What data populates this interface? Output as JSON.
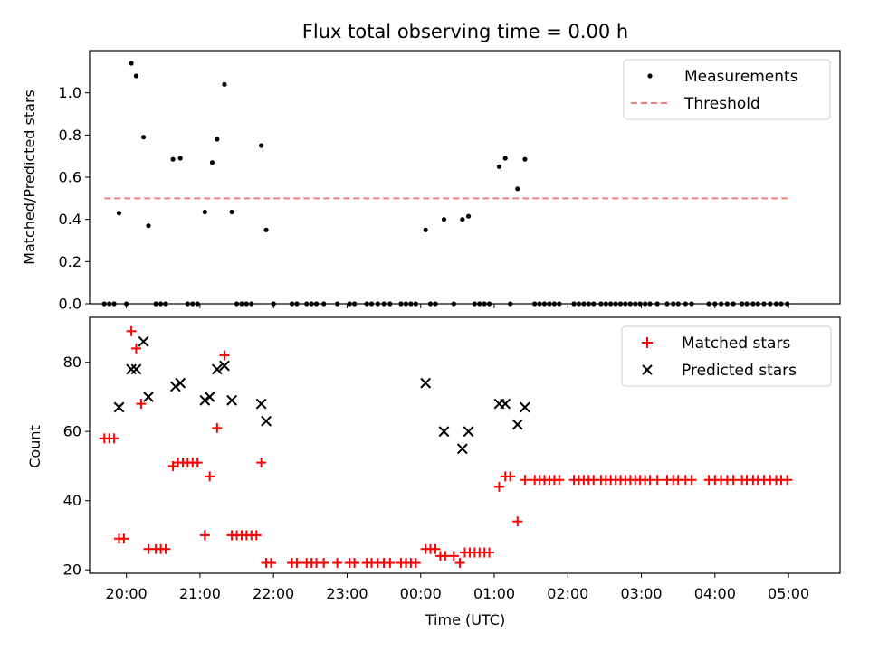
{
  "chart_data": [
    {
      "type": "scatter",
      "title": "Flux total observing time = 0.00 h",
      "xlabel": "",
      "ylabel": "Matched/Predicted stars",
      "ylim": [
        0.0,
        1.2
      ],
      "yticks": [
        "0.0",
        "0.2",
        "0.4",
        "0.6",
        "0.8",
        "1.0"
      ],
      "xlim": [
        -0.5,
        9.7
      ],
      "legend": {
        "placement": "top-right",
        "entries": [
          "Measurements",
          "Threshold"
        ]
      },
      "threshold": {
        "name": "Threshold",
        "x": [
          -0.3,
          9.0
        ],
        "y": 0.5,
        "color": "#f08080"
      },
      "series": [
        {
          "name": "Measurements",
          "marker": "dot",
          "color": "#000000",
          "points": [
            [
              -0.3,
              0
            ],
            [
              -0.233,
              0
            ],
            [
              -0.167,
              0
            ],
            [
              -0.1,
              0.43
            ],
            [
              0.0,
              0
            ],
            [
              0.067,
              1.14
            ],
            [
              0.133,
              1.08
            ],
            [
              0.233,
              0.79
            ],
            [
              0.3,
              0.37
            ],
            [
              0.4,
              0
            ],
            [
              0.467,
              0
            ],
            [
              0.533,
              0
            ],
            [
              0.633,
              0.685
            ],
            [
              0.733,
              0.69
            ],
            [
              0.833,
              0
            ],
            [
              0.9,
              0
            ],
            [
              0.967,
              0
            ],
            [
              1.067,
              0.435
            ],
            [
              1.167,
              0.67
            ],
            [
              1.233,
              0.78
            ],
            [
              1.333,
              1.04
            ],
            [
              1.433,
              0.435
            ],
            [
              1.5,
              0
            ],
            [
              1.567,
              0
            ],
            [
              1.633,
              0
            ],
            [
              1.7,
              0
            ],
            [
              1.833,
              0.75
            ],
            [
              1.9,
              0.35
            ],
            [
              2.0,
              0
            ],
            [
              2.25,
              0
            ],
            [
              2.317,
              0
            ],
            [
              2.45,
              0
            ],
            [
              2.517,
              0
            ],
            [
              2.583,
              0
            ],
            [
              2.683,
              0
            ],
            [
              2.867,
              0
            ],
            [
              3.033,
              0
            ],
            [
              3.1,
              0
            ],
            [
              3.267,
              0
            ],
            [
              3.333,
              0
            ],
            [
              3.417,
              0
            ],
            [
              3.5,
              0
            ],
            [
              3.583,
              0
            ],
            [
              3.733,
              0
            ],
            [
              3.8,
              0
            ],
            [
              3.867,
              0
            ],
            [
              3.933,
              0
            ],
            [
              4.067,
              0.35
            ],
            [
              4.133,
              0
            ],
            [
              4.2,
              0
            ],
            [
              4.317,
              0.4
            ],
            [
              4.45,
              0
            ],
            [
              4.567,
              0.4
            ],
            [
              4.65,
              0.415
            ],
            [
              4.733,
              0
            ],
            [
              4.8,
              0
            ],
            [
              4.867,
              0
            ],
            [
              4.933,
              0
            ],
            [
              5.067,
              0.65
            ],
            [
              5.15,
              0.69
            ],
            [
              5.217,
              0
            ],
            [
              5.317,
              0.545
            ],
            [
              5.417,
              0.685
            ],
            [
              5.55,
              0
            ],
            [
              5.617,
              0
            ],
            [
              5.683,
              0
            ],
            [
              5.75,
              0
            ],
            [
              5.817,
              0
            ],
            [
              5.883,
              0
            ],
            [
              6.083,
              0
            ],
            [
              6.15,
              0
            ],
            [
              6.217,
              0
            ],
            [
              6.283,
              0
            ],
            [
              6.35,
              0
            ],
            [
              6.45,
              0
            ],
            [
              6.517,
              0
            ],
            [
              6.583,
              0
            ],
            [
              6.65,
              0
            ],
            [
              6.717,
              0
            ],
            [
              6.783,
              0
            ],
            [
              6.85,
              0
            ],
            [
              6.917,
              0
            ],
            [
              6.983,
              0
            ],
            [
              7.05,
              0
            ],
            [
              7.117,
              0
            ],
            [
              7.217,
              0
            ],
            [
              7.35,
              0
            ],
            [
              7.433,
              0
            ],
            [
              7.5,
              0
            ],
            [
              7.6,
              0
            ],
            [
              7.683,
              0
            ],
            [
              7.917,
              0
            ],
            [
              8.0,
              0
            ],
            [
              8.083,
              0
            ],
            [
              8.167,
              0
            ],
            [
              8.25,
              0
            ],
            [
              8.367,
              0
            ],
            [
              8.433,
              0
            ],
            [
              8.517,
              0
            ],
            [
              8.583,
              0
            ],
            [
              8.667,
              0
            ],
            [
              8.75,
              0
            ],
            [
              8.833,
              0
            ],
            [
              8.9,
              0
            ],
            [
              8.983,
              0
            ]
          ]
        }
      ]
    },
    {
      "type": "scatter",
      "title": "",
      "xlabel": "Time (UTC)",
      "ylabel": "Count",
      "ylim": [
        19,
        93
      ],
      "yticks": [
        "20",
        "40",
        "60",
        "80"
      ],
      "xlim": [
        -0.5,
        9.7
      ],
      "xticks": [
        "20:00",
        "21:00",
        "22:00",
        "23:00",
        "00:00",
        "01:00",
        "02:00",
        "03:00",
        "04:00",
        "05:00"
      ],
      "legend": {
        "placement": "top-right",
        "entries": [
          "Matched stars",
          "Predicted stars"
        ]
      },
      "series": [
        {
          "name": "Matched stars",
          "marker": "plus",
          "color": "#ff0000",
          "points": [
            [
              -0.3,
              58
            ],
            [
              -0.233,
              58
            ],
            [
              -0.167,
              58
            ],
            [
              -0.1,
              29
            ],
            [
              -0.033,
              29
            ],
            [
              0.067,
              89
            ],
            [
              0.133,
              84
            ],
            [
              0.2,
              68
            ],
            [
              0.3,
              26
            ],
            [
              0.4,
              26
            ],
            [
              0.467,
              26
            ],
            [
              0.533,
              26
            ],
            [
              0.633,
              50
            ],
            [
              0.7,
              51
            ],
            [
              0.767,
              51
            ],
            [
              0.833,
              51
            ],
            [
              0.9,
              51
            ],
            [
              0.967,
              51
            ],
            [
              1.067,
              30
            ],
            [
              1.133,
              47
            ],
            [
              1.233,
              61
            ],
            [
              1.333,
              82
            ],
            [
              1.433,
              30
            ],
            [
              1.5,
              30
            ],
            [
              1.567,
              30
            ],
            [
              1.633,
              30
            ],
            [
              1.7,
              30
            ],
            [
              1.767,
              30
            ],
            [
              1.833,
              51
            ],
            [
              1.9,
              22
            ],
            [
              1.967,
              22
            ],
            [
              2.25,
              22
            ],
            [
              2.317,
              22
            ],
            [
              2.45,
              22
            ],
            [
              2.517,
              22
            ],
            [
              2.583,
              22
            ],
            [
              2.683,
              22
            ],
            [
              2.867,
              22
            ],
            [
              3.033,
              22
            ],
            [
              3.1,
              22
            ],
            [
              3.267,
              22
            ],
            [
              3.333,
              22
            ],
            [
              3.417,
              22
            ],
            [
              3.5,
              22
            ],
            [
              3.583,
              22
            ],
            [
              3.733,
              22
            ],
            [
              3.8,
              22
            ],
            [
              3.867,
              22
            ],
            [
              3.933,
              22
            ],
            [
              4.067,
              26
            ],
            [
              4.133,
              26
            ],
            [
              4.2,
              26
            ],
            [
              4.267,
              24
            ],
            [
              4.333,
              24
            ],
            [
              4.45,
              24
            ],
            [
              4.533,
              22
            ],
            [
              4.6,
              25
            ],
            [
              4.667,
              25
            ],
            [
              4.733,
              25
            ],
            [
              4.8,
              25
            ],
            [
              4.867,
              25
            ],
            [
              4.933,
              25
            ],
            [
              5.067,
              44
            ],
            [
              5.15,
              47
            ],
            [
              5.217,
              47
            ],
            [
              5.317,
              34
            ],
            [
              5.417,
              46
            ],
            [
              5.55,
              46
            ],
            [
              5.617,
              46
            ],
            [
              5.683,
              46
            ],
            [
              5.75,
              46
            ],
            [
              5.817,
              46
            ],
            [
              5.883,
              46
            ],
            [
              6.083,
              46
            ],
            [
              6.15,
              46
            ],
            [
              6.217,
              46
            ],
            [
              6.283,
              46
            ],
            [
              6.35,
              46
            ],
            [
              6.45,
              46
            ],
            [
              6.517,
              46
            ],
            [
              6.583,
              46
            ],
            [
              6.65,
              46
            ],
            [
              6.717,
              46
            ],
            [
              6.783,
              46
            ],
            [
              6.85,
              46
            ],
            [
              6.917,
              46
            ],
            [
              6.983,
              46
            ],
            [
              7.05,
              46
            ],
            [
              7.117,
              46
            ],
            [
              7.217,
              46
            ],
            [
              7.35,
              46
            ],
            [
              7.433,
              46
            ],
            [
              7.5,
              46
            ],
            [
              7.6,
              46
            ],
            [
              7.683,
              46
            ],
            [
              7.917,
              46
            ],
            [
              8.0,
              46
            ],
            [
              8.083,
              46
            ],
            [
              8.167,
              46
            ],
            [
              8.25,
              46
            ],
            [
              8.367,
              46
            ],
            [
              8.433,
              46
            ],
            [
              8.517,
              46
            ],
            [
              8.583,
              46
            ],
            [
              8.667,
              46
            ],
            [
              8.75,
              46
            ],
            [
              8.833,
              46
            ],
            [
              8.9,
              46
            ],
            [
              8.983,
              46
            ]
          ]
        },
        {
          "name": "Predicted stars",
          "marker": "x",
          "color": "#000000",
          "points": [
            [
              -0.1,
              67
            ],
            [
              0.067,
              78
            ],
            [
              0.133,
              78
            ],
            [
              0.233,
              86
            ],
            [
              0.3,
              70
            ],
            [
              0.667,
              73
            ],
            [
              0.733,
              74
            ],
            [
              1.067,
              69
            ],
            [
              1.133,
              70
            ],
            [
              1.233,
              78
            ],
            [
              1.333,
              79
            ],
            [
              1.433,
              69
            ],
            [
              1.833,
              68
            ],
            [
              1.9,
              63
            ],
            [
              4.067,
              74
            ],
            [
              4.317,
              60
            ],
            [
              4.567,
              55
            ],
            [
              4.65,
              60
            ],
            [
              5.067,
              68
            ],
            [
              5.15,
              68
            ],
            [
              5.317,
              62
            ],
            [
              5.417,
              67
            ]
          ]
        }
      ]
    }
  ]
}
